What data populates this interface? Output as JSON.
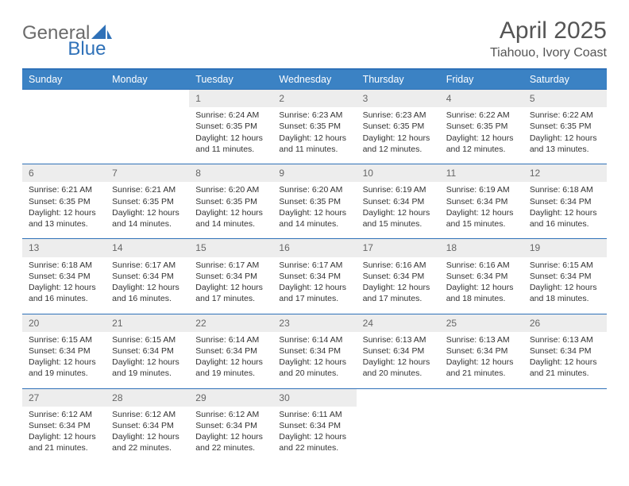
{
  "brand": {
    "part1": "General",
    "part2": "Blue"
  },
  "title": "April 2025",
  "location": "Tiahouo, Ivory Coast",
  "colors": {
    "header_bg": "#3b82c4",
    "header_border": "#2f71b8",
    "daynum_bg": "#ededed",
    "text": "#333333",
    "muted": "#666666",
    "page_bg": "#ffffff"
  },
  "typography": {
    "title_fontsize": 30,
    "location_fontsize": 16,
    "th_fontsize": 12.5,
    "cell_fontsize": 10.5,
    "logo_fontsize": 24
  },
  "weekdays": [
    "Sunday",
    "Monday",
    "Tuesday",
    "Wednesday",
    "Thursday",
    "Friday",
    "Saturday"
  ],
  "weeks": [
    {
      "days": [
        {
          "num": "",
          "sunrise": "",
          "sunset": "",
          "daylight": ""
        },
        {
          "num": "",
          "sunrise": "",
          "sunset": "",
          "daylight": ""
        },
        {
          "num": "1",
          "sunrise": "Sunrise: 6:24 AM",
          "sunset": "Sunset: 6:35 PM",
          "daylight": "Daylight: 12 hours and 11 minutes."
        },
        {
          "num": "2",
          "sunrise": "Sunrise: 6:23 AM",
          "sunset": "Sunset: 6:35 PM",
          "daylight": "Daylight: 12 hours and 11 minutes."
        },
        {
          "num": "3",
          "sunrise": "Sunrise: 6:23 AM",
          "sunset": "Sunset: 6:35 PM",
          "daylight": "Daylight: 12 hours and 12 minutes."
        },
        {
          "num": "4",
          "sunrise": "Sunrise: 6:22 AM",
          "sunset": "Sunset: 6:35 PM",
          "daylight": "Daylight: 12 hours and 12 minutes."
        },
        {
          "num": "5",
          "sunrise": "Sunrise: 6:22 AM",
          "sunset": "Sunset: 6:35 PM",
          "daylight": "Daylight: 12 hours and 13 minutes."
        }
      ]
    },
    {
      "days": [
        {
          "num": "6",
          "sunrise": "Sunrise: 6:21 AM",
          "sunset": "Sunset: 6:35 PM",
          "daylight": "Daylight: 12 hours and 13 minutes."
        },
        {
          "num": "7",
          "sunrise": "Sunrise: 6:21 AM",
          "sunset": "Sunset: 6:35 PM",
          "daylight": "Daylight: 12 hours and 14 minutes."
        },
        {
          "num": "8",
          "sunrise": "Sunrise: 6:20 AM",
          "sunset": "Sunset: 6:35 PM",
          "daylight": "Daylight: 12 hours and 14 minutes."
        },
        {
          "num": "9",
          "sunrise": "Sunrise: 6:20 AM",
          "sunset": "Sunset: 6:35 PM",
          "daylight": "Daylight: 12 hours and 14 minutes."
        },
        {
          "num": "10",
          "sunrise": "Sunrise: 6:19 AM",
          "sunset": "Sunset: 6:34 PM",
          "daylight": "Daylight: 12 hours and 15 minutes."
        },
        {
          "num": "11",
          "sunrise": "Sunrise: 6:19 AM",
          "sunset": "Sunset: 6:34 PM",
          "daylight": "Daylight: 12 hours and 15 minutes."
        },
        {
          "num": "12",
          "sunrise": "Sunrise: 6:18 AM",
          "sunset": "Sunset: 6:34 PM",
          "daylight": "Daylight: 12 hours and 16 minutes."
        }
      ]
    },
    {
      "days": [
        {
          "num": "13",
          "sunrise": "Sunrise: 6:18 AM",
          "sunset": "Sunset: 6:34 PM",
          "daylight": "Daylight: 12 hours and 16 minutes."
        },
        {
          "num": "14",
          "sunrise": "Sunrise: 6:17 AM",
          "sunset": "Sunset: 6:34 PM",
          "daylight": "Daylight: 12 hours and 16 minutes."
        },
        {
          "num": "15",
          "sunrise": "Sunrise: 6:17 AM",
          "sunset": "Sunset: 6:34 PM",
          "daylight": "Daylight: 12 hours and 17 minutes."
        },
        {
          "num": "16",
          "sunrise": "Sunrise: 6:17 AM",
          "sunset": "Sunset: 6:34 PM",
          "daylight": "Daylight: 12 hours and 17 minutes."
        },
        {
          "num": "17",
          "sunrise": "Sunrise: 6:16 AM",
          "sunset": "Sunset: 6:34 PM",
          "daylight": "Daylight: 12 hours and 17 minutes."
        },
        {
          "num": "18",
          "sunrise": "Sunrise: 6:16 AM",
          "sunset": "Sunset: 6:34 PM",
          "daylight": "Daylight: 12 hours and 18 minutes."
        },
        {
          "num": "19",
          "sunrise": "Sunrise: 6:15 AM",
          "sunset": "Sunset: 6:34 PM",
          "daylight": "Daylight: 12 hours and 18 minutes."
        }
      ]
    },
    {
      "days": [
        {
          "num": "20",
          "sunrise": "Sunrise: 6:15 AM",
          "sunset": "Sunset: 6:34 PM",
          "daylight": "Daylight: 12 hours and 19 minutes."
        },
        {
          "num": "21",
          "sunrise": "Sunrise: 6:15 AM",
          "sunset": "Sunset: 6:34 PM",
          "daylight": "Daylight: 12 hours and 19 minutes."
        },
        {
          "num": "22",
          "sunrise": "Sunrise: 6:14 AM",
          "sunset": "Sunset: 6:34 PM",
          "daylight": "Daylight: 12 hours and 19 minutes."
        },
        {
          "num": "23",
          "sunrise": "Sunrise: 6:14 AM",
          "sunset": "Sunset: 6:34 PM",
          "daylight": "Daylight: 12 hours and 20 minutes."
        },
        {
          "num": "24",
          "sunrise": "Sunrise: 6:13 AM",
          "sunset": "Sunset: 6:34 PM",
          "daylight": "Daylight: 12 hours and 20 minutes."
        },
        {
          "num": "25",
          "sunrise": "Sunrise: 6:13 AM",
          "sunset": "Sunset: 6:34 PM",
          "daylight": "Daylight: 12 hours and 21 minutes."
        },
        {
          "num": "26",
          "sunrise": "Sunrise: 6:13 AM",
          "sunset": "Sunset: 6:34 PM",
          "daylight": "Daylight: 12 hours and 21 minutes."
        }
      ]
    },
    {
      "days": [
        {
          "num": "27",
          "sunrise": "Sunrise: 6:12 AM",
          "sunset": "Sunset: 6:34 PM",
          "daylight": "Daylight: 12 hours and 21 minutes."
        },
        {
          "num": "28",
          "sunrise": "Sunrise: 6:12 AM",
          "sunset": "Sunset: 6:34 PM",
          "daylight": "Daylight: 12 hours and 22 minutes."
        },
        {
          "num": "29",
          "sunrise": "Sunrise: 6:12 AM",
          "sunset": "Sunset: 6:34 PM",
          "daylight": "Daylight: 12 hours and 22 minutes."
        },
        {
          "num": "30",
          "sunrise": "Sunrise: 6:11 AM",
          "sunset": "Sunset: 6:34 PM",
          "daylight": "Daylight: 12 hours and 22 minutes."
        },
        {
          "num": "",
          "sunrise": "",
          "sunset": "",
          "daylight": ""
        },
        {
          "num": "",
          "sunrise": "",
          "sunset": "",
          "daylight": ""
        },
        {
          "num": "",
          "sunrise": "",
          "sunset": "",
          "daylight": ""
        }
      ]
    }
  ]
}
